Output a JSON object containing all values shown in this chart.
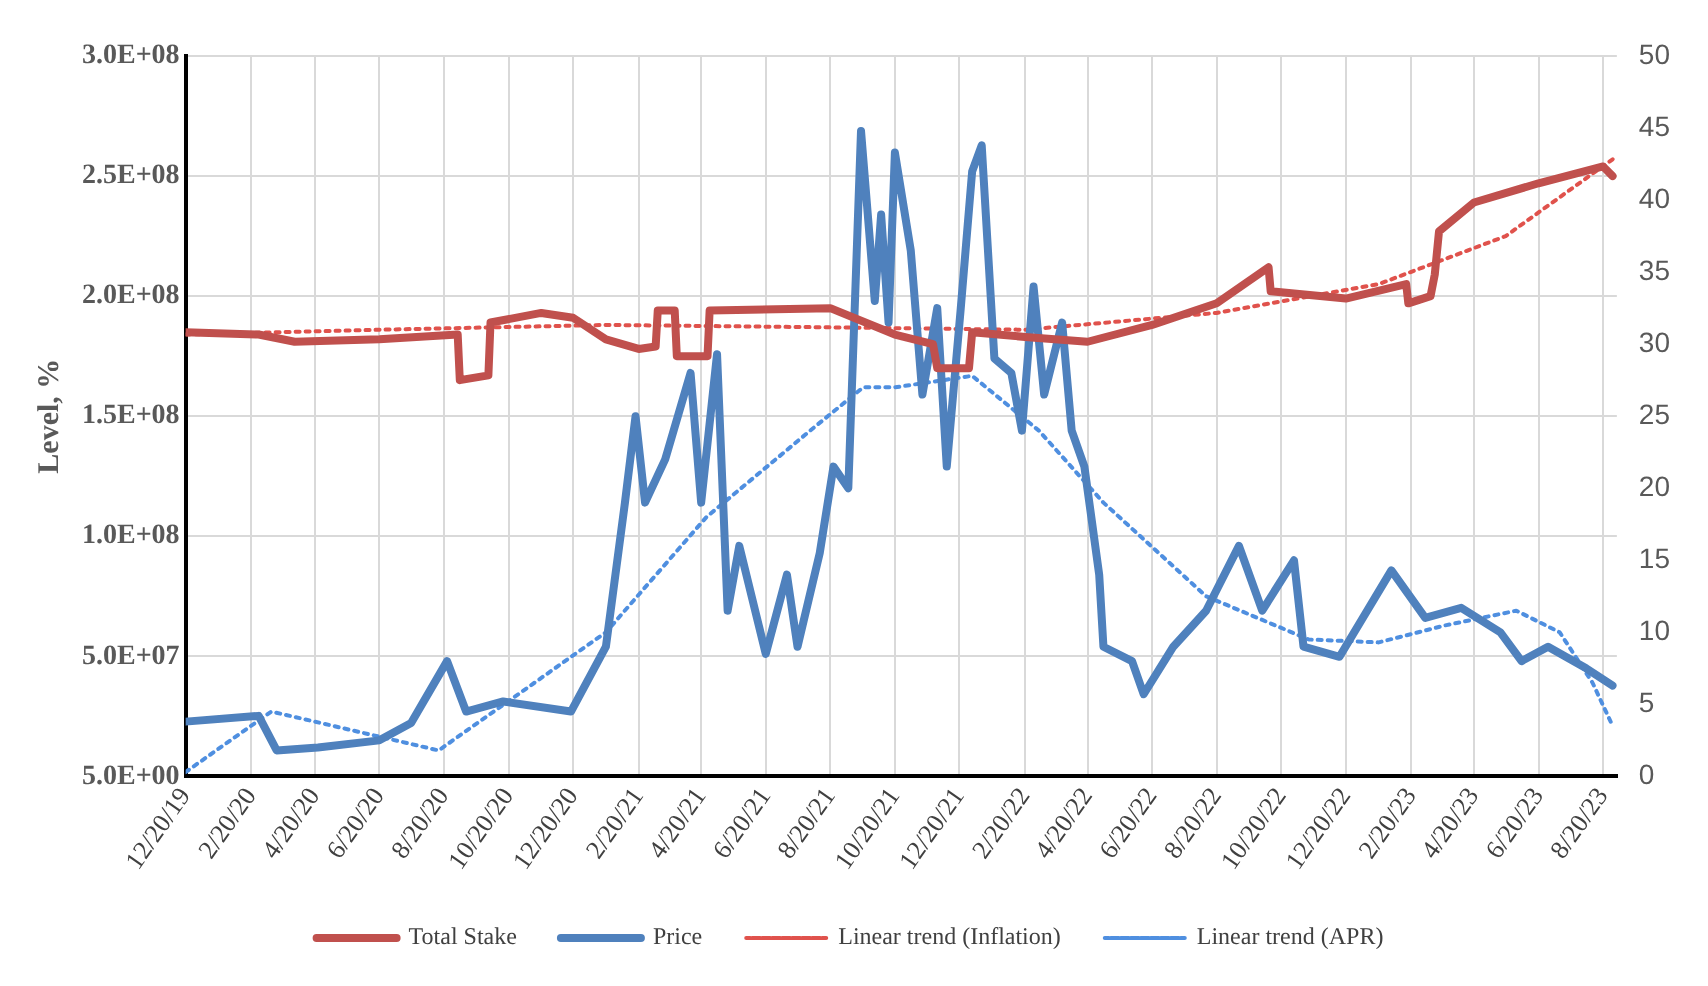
{
  "chart_data": {
    "type": "line",
    "ylabel": "Level, %",
    "grid": true,
    "legend": "bottom",
    "marker": "none",
    "xlim": [
      "2019-12-20",
      "2023-09-02"
    ],
    "xticks": [
      {
        "value": "2019-12-20",
        "label": "12/20/19"
      },
      {
        "value": "2020-02-20",
        "label": "2/20/20"
      },
      {
        "value": "2020-04-20",
        "label": "4/20/20"
      },
      {
        "value": "2020-06-20",
        "label": "6/20/20"
      },
      {
        "value": "2020-08-20",
        "label": "8/20/20"
      },
      {
        "value": "2020-10-20",
        "label": "10/20/20"
      },
      {
        "value": "2020-12-20",
        "label": "12/20/20"
      },
      {
        "value": "2021-02-20",
        "label": "2/20/21"
      },
      {
        "value": "2021-04-20",
        "label": "4/20/21"
      },
      {
        "value": "2021-06-20",
        "label": "6/20/21"
      },
      {
        "value": "2021-08-20",
        "label": "8/20/21"
      },
      {
        "value": "2021-10-20",
        "label": "10/20/21"
      },
      {
        "value": "2021-12-20",
        "label": "12/20/21"
      },
      {
        "value": "2022-02-20",
        "label": "2/20/22"
      },
      {
        "value": "2022-04-20",
        "label": "4/20/22"
      },
      {
        "value": "2022-06-20",
        "label": "6/20/22"
      },
      {
        "value": "2022-08-20",
        "label": "8/20/22"
      },
      {
        "value": "2022-10-20",
        "label": "10/20/22"
      },
      {
        "value": "2022-12-20",
        "label": "12/20/22"
      },
      {
        "value": "2023-02-20",
        "label": "2/20/23"
      },
      {
        "value": "2023-04-20",
        "label": "4/20/23"
      },
      {
        "value": "2023-06-20",
        "label": "6/20/23"
      },
      {
        "value": "2023-08-20",
        "label": "8/20/23"
      }
    ],
    "ylim": [
      5,
      300000000
    ],
    "yticks": [
      {
        "value": 5,
        "label": "5.0E+00"
      },
      {
        "value": 50000000,
        "label": "5.0E+07"
      },
      {
        "value": 100000000,
        "label": "1.0E+08"
      },
      {
        "value": 150000000,
        "label": "1.5E+08"
      },
      {
        "value": 200000000,
        "label": "2.0E+08"
      },
      {
        "value": 250000000,
        "label": "2.5E+08"
      },
      {
        "value": 300000000,
        "label": "3.0E+08"
      }
    ],
    "y2lim": [
      0,
      50
    ],
    "y2ticks": [
      0,
      5,
      10,
      15,
      20,
      25,
      30,
      35,
      40,
      45,
      50
    ],
    "series": [
      {
        "name": "Total Stake",
        "color": "#c0504d",
        "line_style": "solid",
        "x": [
          "2019-12-20",
          "2020-02-27",
          "2020-04-01",
          "2020-06-20",
          "2020-09-02",
          "2020-09-04",
          "2020-10-01",
          "2020-10-03",
          "2020-11-20",
          "2020-12-20",
          "2021-01-20",
          "2021-02-20",
          "2021-03-08",
          "2021-03-10",
          "2021-03-26",
          "2021-03-28",
          "2021-04-26",
          "2021-04-28",
          "2021-08-20",
          "2021-10-20",
          "2021-11-25",
          "2021-11-29",
          "2021-12-29",
          "2022-01-01",
          "2022-02-20",
          "2022-04-20",
          "2022-06-20",
          "2022-08-20",
          "2022-10-08",
          "2022-10-10",
          "2022-12-20",
          "2023-02-15",
          "2023-02-17",
          "2023-03-10",
          "2023-03-14",
          "2023-03-18",
          "2023-04-20",
          "2023-06-20",
          "2023-08-20",
          "2023-08-29"
        ],
        "values": [
          185000000,
          184000000,
          181000000,
          182000000,
          184000000,
          165000000,
          167000000,
          189000000,
          193000000,
          191000000,
          182000000,
          178000000,
          179000000,
          194000000,
          194000000,
          175000000,
          175000000,
          194000000,
          195000000,
          184000000,
          180000000,
          170000000,
          170000000,
          185000000,
          183000000,
          181000000,
          188000000,
          197000000,
          212000000,
          202000000,
          199000000,
          205000000,
          197000000,
          200000000,
          209000000,
          227000000,
          239000000,
          247000000,
          254000000,
          250000000
        ]
      },
      {
        "name": "Price",
        "color": "#4f81bd",
        "line_style": "solid",
        "axis": "y2",
        "x": [
          "2019-12-20",
          "2020-02-27",
          "2020-03-15",
          "2020-04-23",
          "2020-06-20",
          "2020-07-20",
          "2020-08-23",
          "2020-09-10",
          "2020-10-15",
          "2020-12-18",
          "2021-01-20",
          "2021-02-07",
          "2021-02-17",
          "2021-02-26",
          "2021-03-17",
          "2021-04-10",
          "2021-04-20",
          "2021-05-05",
          "2021-05-15",
          "2021-05-26",
          "2021-06-20",
          "2021-07-10",
          "2021-07-20",
          "2021-08-10",
          "2021-08-23",
          "2021-09-06",
          "2021-09-18",
          "2021-10-01",
          "2021-10-07",
          "2021-10-14",
          "2021-10-20",
          "2021-11-04",
          "2021-11-15",
          "2021-11-29",
          "2021-12-08",
          "2021-12-21",
          "2022-01-01",
          "2022-01-10",
          "2022-01-22",
          "2022-02-07",
          "2022-02-17",
          "2022-02-28",
          "2022-03-10",
          "2022-03-27",
          "2022-04-05",
          "2022-04-17",
          "2022-05-01",
          "2022-05-05",
          "2022-06-01",
          "2022-06-12",
          "2022-07-10",
          "2022-08-10",
          "2022-09-10",
          "2022-10-02",
          "2022-11-01",
          "2022-11-10",
          "2022-12-14",
          "2023-02-01",
          "2023-03-05",
          "2023-04-08",
          "2023-05-15",
          "2023-06-04",
          "2023-06-29",
          "2023-08-04",
          "2023-08-29"
        ],
        "values": [
          3.8,
          4.2,
          1.8,
          2,
          2.5,
          3.7,
          8,
          4.5,
          5.2,
          4.5,
          9,
          19,
          25,
          19,
          22,
          28,
          19,
          29.3,
          11.5,
          16,
          8.5,
          14,
          9,
          15.5,
          21.5,
          20,
          44.8,
          33,
          39,
          31.5,
          43.3,
          36.5,
          26.5,
          32.5,
          21.5,
          32.3,
          42,
          43.8,
          29,
          28,
          24,
          34,
          26.5,
          31.5,
          24,
          21.5,
          14,
          9,
          8,
          5.7,
          9,
          11.5,
          16,
          11.5,
          15,
          9,
          8.3,
          14.3,
          11,
          11.7,
          10,
          8,
          9,
          7.5,
          6.3
        ]
      },
      {
        "name": "Linear trend (Inflation)",
        "color": "#e0524c",
        "line_style": "dotted",
        "x": [
          "2019-12-20",
          "2020-06-20",
          "2021-01-20",
          "2021-08-20",
          "2022-02-20",
          "2022-08-20",
          "2023-01-20",
          "2023-05-20",
          "2023-08-29"
        ],
        "values": [
          184000000,
          186000000,
          188000000,
          187000000,
          186000000,
          193000000,
          205000000,
          225000000,
          257000000
        ]
      },
      {
        "name": "Linear trend (APR)",
        "color": "#4f8fe0",
        "line_style": "dotted",
        "axis": "y2",
        "x": [
          "2019-12-20",
          "2020-03-10",
          "2020-08-15",
          "2021-01-20",
          "2021-04-25",
          "2021-08-01",
          "2021-09-20",
          "2021-10-20",
          "2022-01-01",
          "2022-03-05",
          "2022-05-05",
          "2022-08-10",
          "2022-11-15",
          "2023-01-20",
          "2023-03-25",
          "2023-05-30",
          "2023-07-10",
          "2023-08-10",
          "2023-08-29"
        ],
        "values": [
          0.3,
          4.5,
          1.8,
          10,
          18,
          24,
          27,
          27,
          27.8,
          24,
          19,
          12.5,
          9.5,
          9.3,
          10.5,
          11.5,
          10,
          6.5,
          3.5
        ]
      }
    ]
  }
}
